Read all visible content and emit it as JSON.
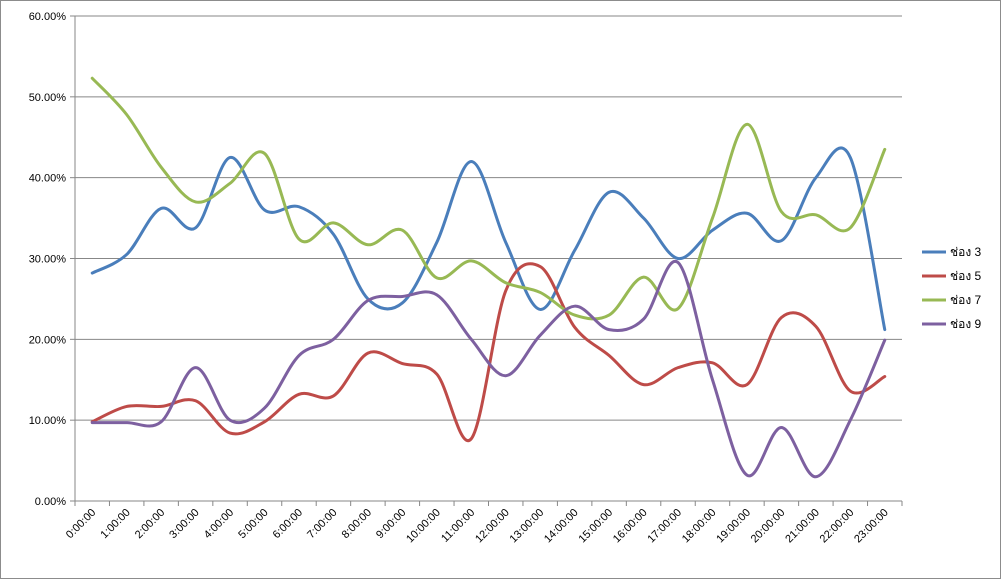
{
  "chart_data": {
    "type": "line",
    "title": "",
    "xlabel": "",
    "ylabel": "",
    "ylim": [
      0,
      60
    ],
    "y_ticks": [
      "0.00%",
      "10.00%",
      "20.00%",
      "30.00%",
      "40.00%",
      "50.00%",
      "60.00%"
    ],
    "grid": "horizontal",
    "smooth": true,
    "legend_position": "right",
    "categories": [
      "0:00:00",
      "1:00:00",
      "2:00:00",
      "3:00:00",
      "4:00:00",
      "5:00:00",
      "6:00:00",
      "7:00:00",
      "8:00:00",
      "9:00:00",
      "10:00:00",
      "11:00:00",
      "12:00:00",
      "13:00:00",
      "14:00:00",
      "15:00:00",
      "16:00:00",
      "17:00:00",
      "18:00:00",
      "19:00:00",
      "20:00:00",
      "21:00:00",
      "22:00:00",
      "23:00:00"
    ],
    "series": [
      {
        "name": "ช่อง 3",
        "color": "#4a7ebb",
        "values": [
          28.2,
          30.5,
          36.2,
          33.8,
          42.5,
          36.0,
          36.4,
          33.0,
          25.0,
          24.5,
          32.0,
          42.0,
          32.0,
          23.7,
          31.0,
          38.2,
          35.0,
          30.0,
          33.5,
          35.6,
          32.2,
          40.0,
          42.5,
          21.2
        ]
      },
      {
        "name": "ช่อง 5",
        "color": "#be4b48",
        "values": [
          9.8,
          11.7,
          11.7,
          12.4,
          8.4,
          9.8,
          13.2,
          13.0,
          18.3,
          17.0,
          15.7,
          7.7,
          26.0,
          29.0,
          21.5,
          18.0,
          14.4,
          16.5,
          17.1,
          14.4,
          22.7,
          21.6,
          13.6,
          15.4
        ]
      },
      {
        "name": "ช่อง 7",
        "color": "#98b954",
        "values": [
          52.3,
          47.8,
          41.3,
          37.0,
          39.3,
          43.0,
          32.4,
          34.4,
          31.7,
          33.5,
          27.6,
          29.7,
          27.0,
          25.8,
          23.0,
          23.0,
          27.7,
          23.8,
          35.0,
          46.6,
          35.8,
          35.4,
          33.8,
          43.5
        ]
      },
      {
        "name": "ช่อง 9",
        "color": "#7d60a0",
        "values": [
          9.7,
          9.7,
          9.8,
          16.5,
          10.0,
          11.5,
          18.0,
          20.0,
          24.8,
          25.3,
          25.5,
          20.0,
          15.5,
          20.5,
          24.1,
          21.2,
          22.5,
          29.5,
          15.0,
          3.2,
          9.1,
          3.0,
          10.0,
          19.9
        ]
      }
    ]
  }
}
